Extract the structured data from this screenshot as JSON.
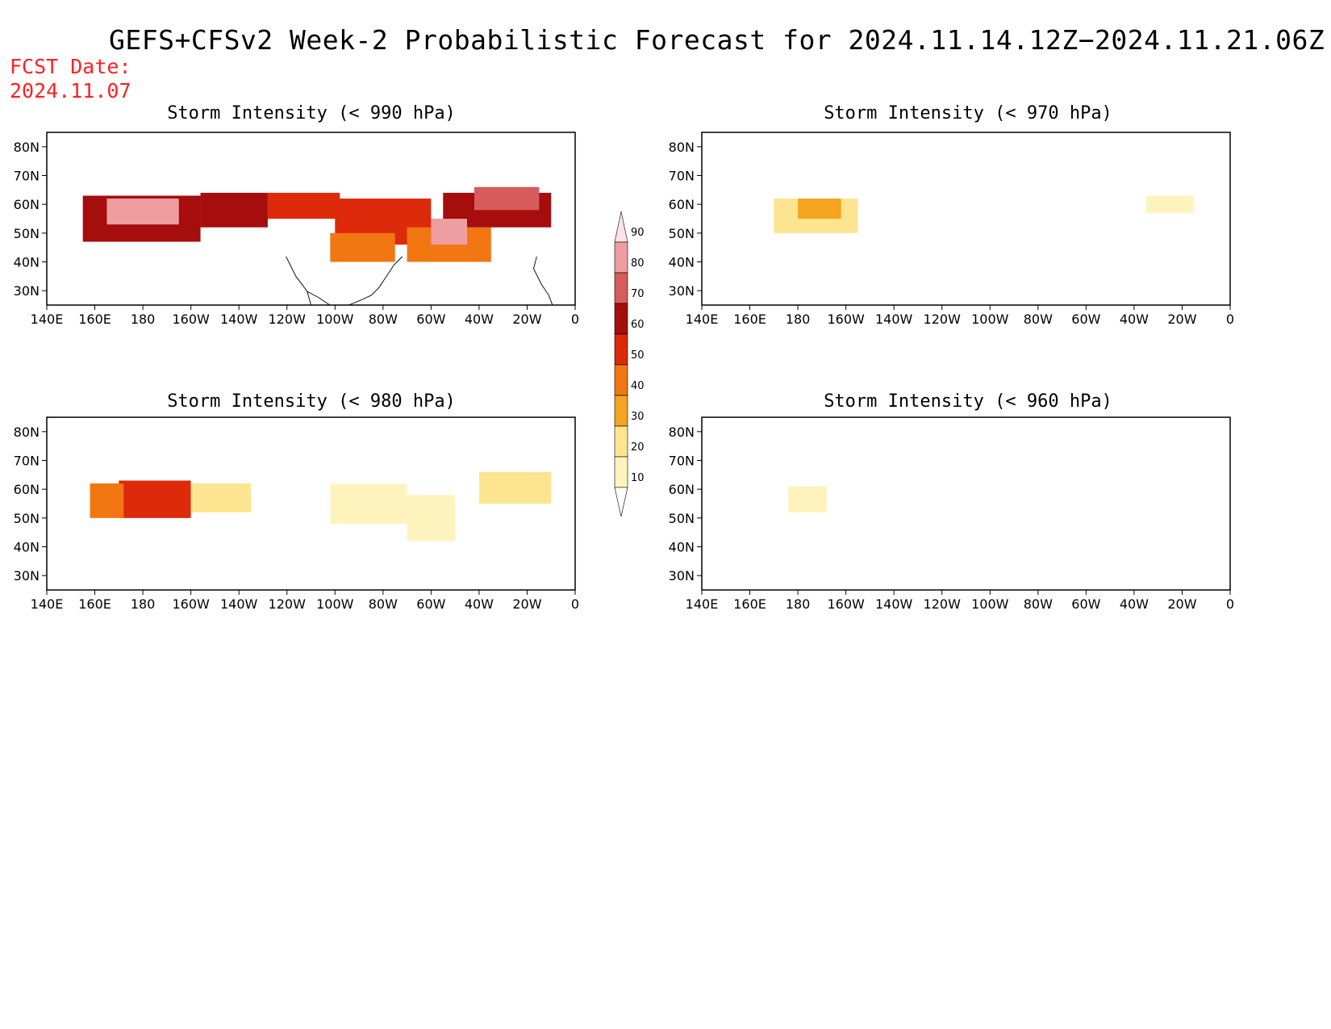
{
  "title": "GEFS+CFSv2 Week-2 Probabilistic Forecast for 2024.11.14.12Z−2024.11.21.06Z",
  "fcst_date_label": "FCST Date:",
  "fcst_date": "2024.11.07",
  "axes": {
    "x_ticks": [
      "140E",
      "160E",
      "180",
      "160W",
      "140W",
      "120W",
      "100W",
      "80W",
      "60W",
      "40W",
      "20W",
      "0"
    ],
    "y_ticks": [
      "80N",
      "70N",
      "60N",
      "50N",
      "40N",
      "30N"
    ],
    "lon_range": [
      140,
      360
    ],
    "lat_range": [
      25,
      85
    ]
  },
  "colorbar": {
    "levels": [
      10,
      20,
      30,
      40,
      50,
      60,
      70,
      80,
      90
    ],
    "colors": [
      "#fff3bd",
      "#fde58f",
      "#f4a41f",
      "#f27612",
      "#dd2a0a",
      "#a60d0d",
      "#d75b5b",
      "#ee9da0",
      "#fde2e6"
    ]
  },
  "panels": [
    {
      "title": "Storm Intensity (< 990 hPa)",
      "regions": [
        {
          "lon": [
            155,
            204
          ],
          "lat": [
            47,
            63
          ],
          "level": 60
        },
        {
          "lon": [
            165,
            195
          ],
          "lat": [
            53,
            62
          ],
          "level": 80
        },
        {
          "lon": [
            204,
            232
          ],
          "lat": [
            52,
            64
          ],
          "level": 60
        },
        {
          "lon": [
            232,
            262
          ],
          "lat": [
            55,
            64
          ],
          "level": 50
        },
        {
          "lon": [
            260,
            300
          ],
          "lat": [
            46,
            62
          ],
          "level": 50
        },
        {
          "lon": [
            258,
            285
          ],
          "lat": [
            40,
            50
          ],
          "level": 40
        },
        {
          "lon": [
            290,
            325
          ],
          "lat": [
            40,
            52
          ],
          "level": 40
        },
        {
          "lon": [
            305,
            350
          ],
          "lat": [
            52,
            64
          ],
          "level": 60
        },
        {
          "lon": [
            318,
            345
          ],
          "lat": [
            58,
            66
          ],
          "level": 70
        },
        {
          "lon": [
            300,
            315
          ],
          "lat": [
            46,
            55
          ],
          "level": 80
        }
      ]
    },
    {
      "title": "Storm Intensity (< 980 hPa)",
      "regions": [
        {
          "lon": [
            170,
            200
          ],
          "lat": [
            50,
            63
          ],
          "level": 50
        },
        {
          "lon": [
            158,
            172
          ],
          "lat": [
            50,
            62
          ],
          "level": 40
        },
        {
          "lon": [
            200,
            225
          ],
          "lat": [
            52,
            62
          ],
          "level": 20
        },
        {
          "lon": [
            258,
            290
          ],
          "lat": [
            48,
            62
          ],
          "level": 10
        },
        {
          "lon": [
            290,
            310
          ],
          "lat": [
            42,
            58
          ],
          "level": 10
        },
        {
          "lon": [
            320,
            350
          ],
          "lat": [
            55,
            66
          ],
          "level": 20
        }
      ]
    },
    {
      "title": "Storm Intensity (< 970 hPa)",
      "regions": [
        {
          "lon": [
            170,
            205
          ],
          "lat": [
            50,
            62
          ],
          "level": 20
        },
        {
          "lon": [
            180,
            198
          ],
          "lat": [
            55,
            62
          ],
          "level": 30
        },
        {
          "lon": [
            325,
            345
          ],
          "lat": [
            57,
            63
          ],
          "level": 10
        }
      ]
    },
    {
      "title": "Storm Intensity (< 960 hPa)",
      "regions": [
        {
          "lon": [
            176,
            192
          ],
          "lat": [
            52,
            61
          ],
          "level": 10
        }
      ]
    }
  ]
}
